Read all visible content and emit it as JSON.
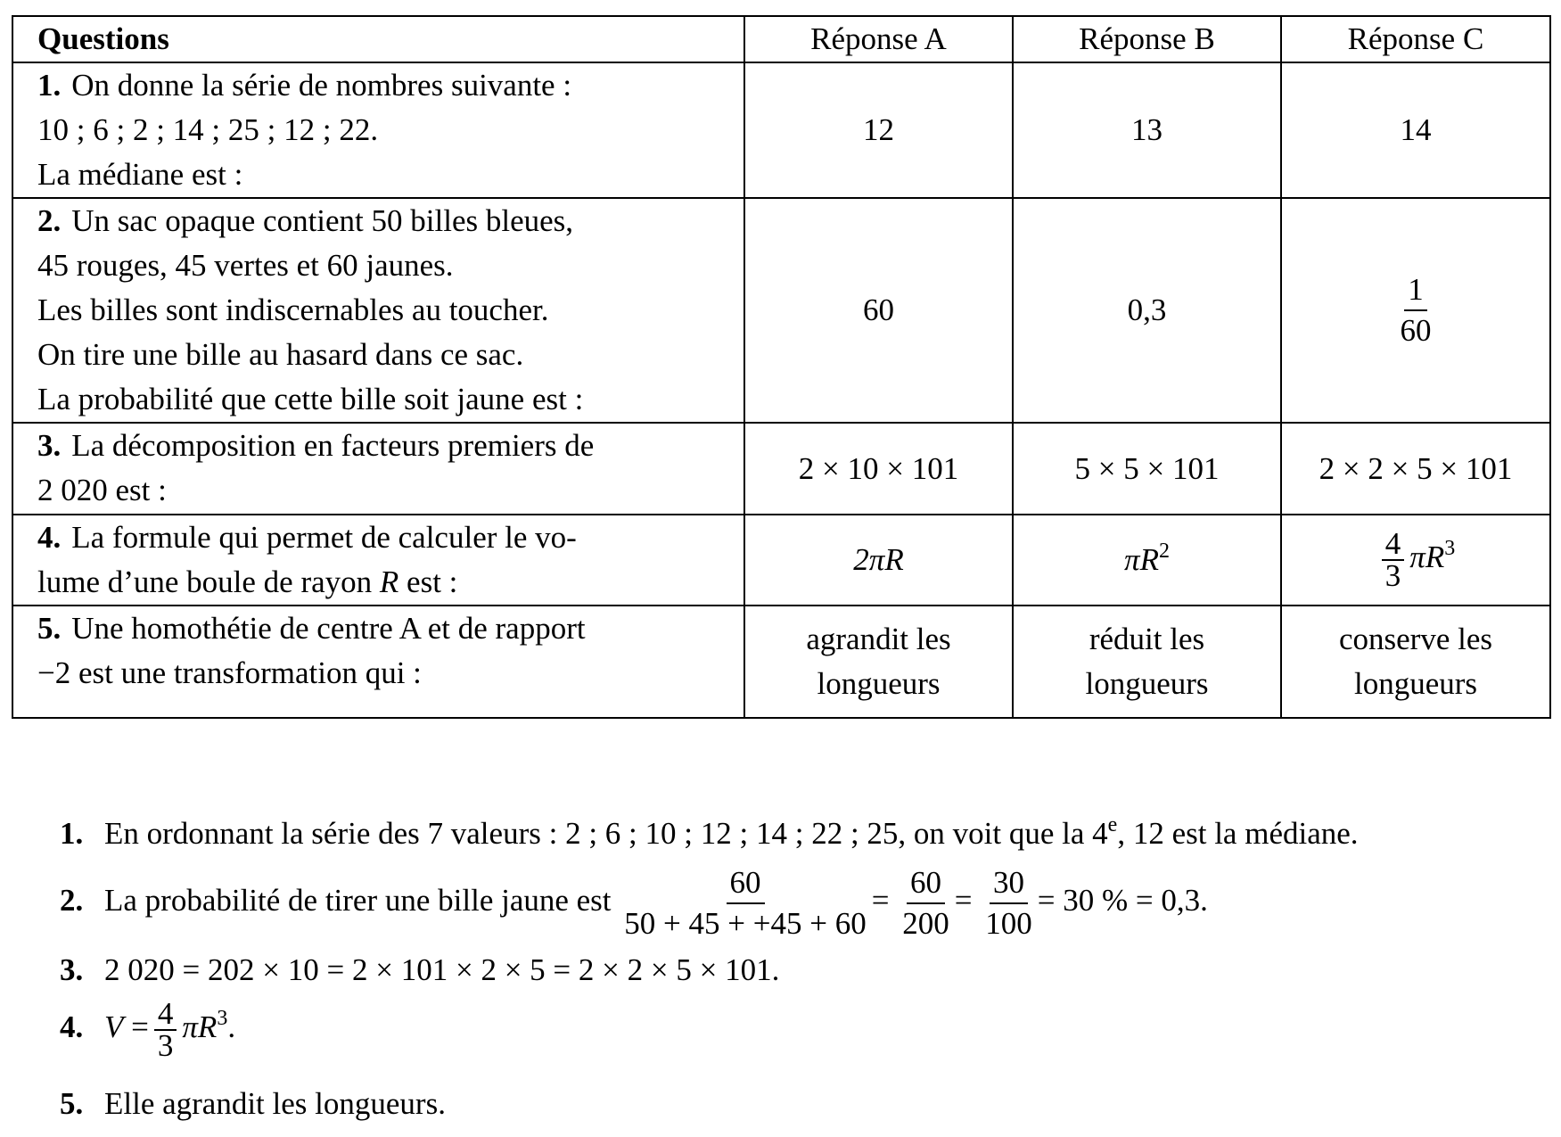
{
  "table": {
    "header": [
      "Questions",
      "Réponse A",
      "Réponse B",
      "Réponse C"
    ],
    "rows": [
      {
        "number": "1.",
        "question": [
          "On donne la série de nombres suivante :",
          "10 ; 6 ; 2 ; 14 ; 25 ; 12 ; 22.",
          "La médiane est :"
        ],
        "answers": [
          "12",
          "13",
          "14"
        ]
      },
      {
        "number": "2.",
        "question": [
          "Un sac opaque contient 50 billes bleues,",
          "45 rouges, 45 vertes et 60 jaunes.",
          "Les billes sont indiscernables au toucher.",
          "On tire une bille au hasard dans ce sac.",
          "La probabilité que cette bille soit jaune est :"
        ],
        "answers": [
          "60",
          "0,3",
          {
            "num": "1",
            "den": "60"
          }
        ]
      },
      {
        "number": "3.",
        "question": [
          "La décomposition en facteurs premiers de",
          "2 020 est :"
        ],
        "answers": [
          "2 × 10 × 101",
          "5 × 5 × 101",
          "2 × 2 × 5 × 101"
        ]
      },
      {
        "number": "4.",
        "question": [
          "La formule qui permet de calculer le vo-",
          {
            "text": "lume d’une boule de rayon",
            "var": "R",
            "end": "est :"
          }
        ],
        "answers": [
          "2πR",
          {
            "base": "πR",
            "sup": "2"
          },
          {
            "num": "4",
            "den": "3",
            "base": "πR",
            "sup": "3"
          }
        ]
      },
      {
        "number": "5.",
        "question": [
          "Une homothétie de centre A et de rapport",
          "−2 est une transformation qui :"
        ],
        "answers": [
          [
            "agrandit les",
            "longueurs"
          ],
          [
            "réduit les",
            "longueurs"
          ],
          [
            "conserve les",
            "longueurs"
          ]
        ]
      }
    ]
  },
  "solutions": [
    {
      "number": "1.",
      "text": "En ordonnant la série des 7 valeurs : 2 ; 6 ; 10 ; 12 ; 14 ; 22 ; 25, on voit que la 4",
      "sup": "e",
      "end": ", 12 est la médiane."
    },
    {
      "number": "2.",
      "text": "La probabilité de tirer une bille jaune est",
      "fractions": [
        {
          "num": "60",
          "den": "50 + 45 + +45 + 60"
        },
        {
          "num": "60",
          "den": "200"
        },
        {
          "num": "30",
          "den": "100"
        }
      ],
      "equals": "=",
      "end": "= 30 % = 0,3."
    },
    {
      "number": "3.",
      "text": "2 020 = 202 × 10 = 2 × 101 × 2 × 5 = 2 × 2 × 5 × 101."
    },
    {
      "number": "4.",
      "var": "V",
      "equals": "=",
      "num": "4",
      "den": "3",
      "base": "πR",
      "sup": "3",
      "end": "."
    },
    {
      "number": "5.",
      "text": "Elle agrandit les longueurs."
    }
  ]
}
